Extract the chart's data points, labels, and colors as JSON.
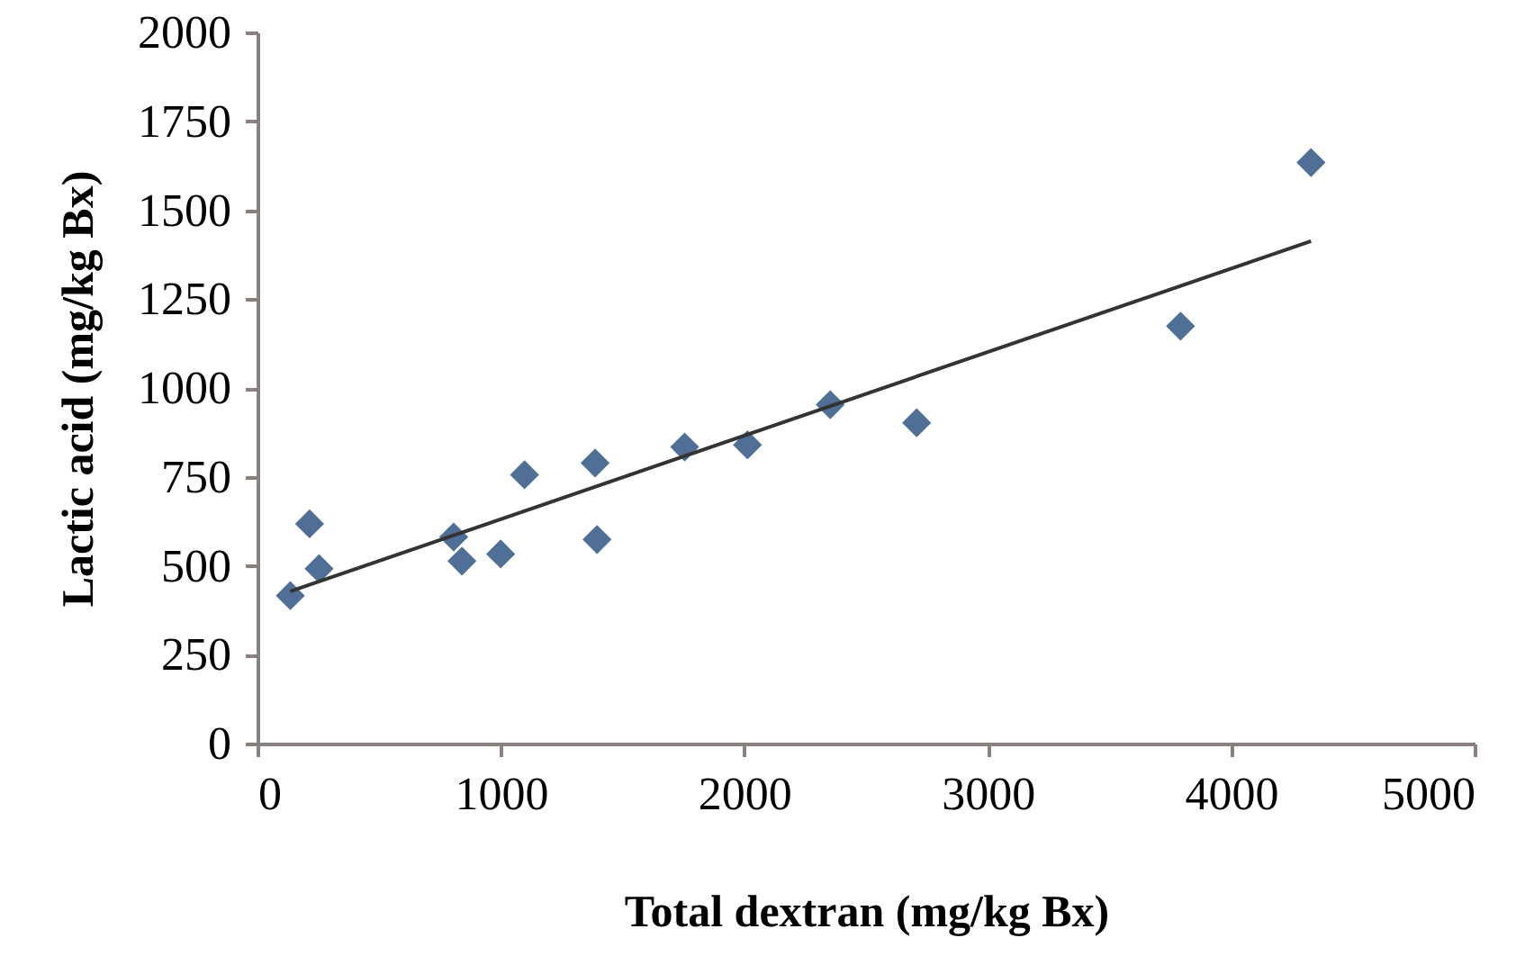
{
  "chart_data": {
    "type": "scatter",
    "xlabel": "Total dextran (mg/kg Bx)",
    "ylabel": "Lactic acid (mg/kg Bx)",
    "xlim": [
      0,
      5000
    ],
    "xticks": [
      0,
      1000,
      2000,
      3000,
      4000,
      5000
    ],
    "ylim": [
      0,
      2000
    ],
    "yticks": [
      0,
      250,
      500,
      750,
      1000,
      1250,
      1500,
      1750,
      2000
    ],
    "grid": false,
    "series": [
      {
        "marker": "diamond",
        "color": "#4f6f96",
        "x": [
          135,
          214,
          253,
          806,
          840,
          999,
          1097,
          1387,
          1395,
          1755,
          2013,
          2353,
          2708,
          3792,
          4328
        ],
        "values": [
          416,
          618,
          492,
          581,
          513,
          533,
          756,
          789,
          574,
          834,
          840,
          953,
          902,
          1174,
          1634
        ]
      },
      {
        "type": "line",
        "marker": "none",
        "color": "#333333",
        "x": [
          135,
          4328
        ],
        "values": [
          428,
          1413
        ]
      }
    ]
  }
}
